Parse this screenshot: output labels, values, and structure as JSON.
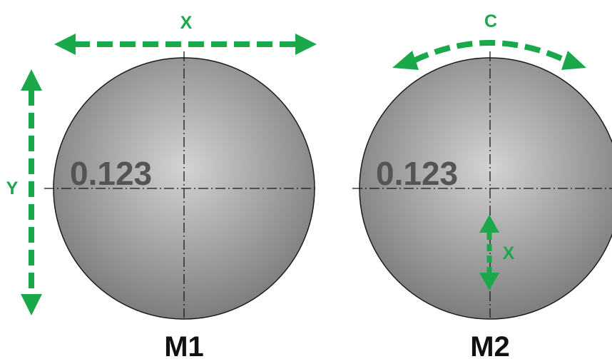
{
  "colors": {
    "arrow": "#1aa84a",
    "outline": "#1a1a1a",
    "engrave_text": "#545454",
    "label_text": "#111111",
    "sphere_light": "#d3d3d3",
    "sphere_dark": "#7a7a7a"
  },
  "m1": {
    "label": "M1",
    "engraving": "0.123",
    "axis_x_label": "X",
    "axis_y_label": "Y"
  },
  "m2": {
    "label": "M2",
    "engraving": "0.123",
    "axis_c_label": "C",
    "axis_x_label": "X"
  }
}
